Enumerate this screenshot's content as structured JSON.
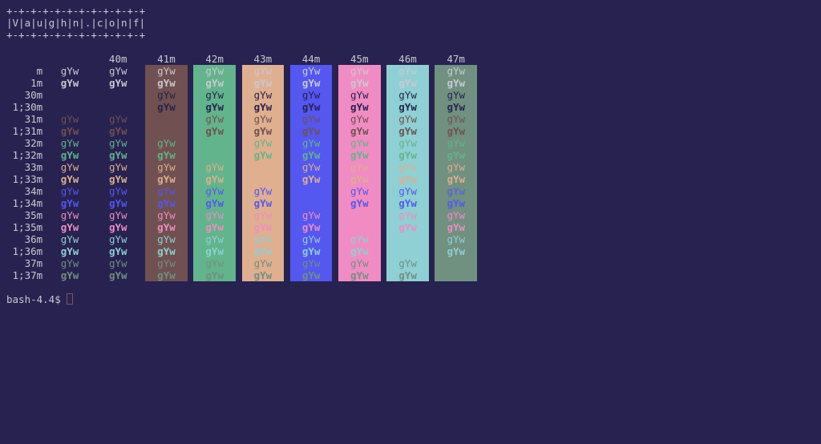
{
  "terminal": {
    "colors": {
      "background": "#272250",
      "foreground": "#c9c9d1",
      "cursor_border": "#8a5260",
      "ansi": {
        "black": "#272250",
        "red": "#705050",
        "green": "#62b48c",
        "yellow": "#dfaf8f",
        "blue": "#5457f0",
        "magenta": "#f08cc3",
        "cyan": "#8ed0d3",
        "white": "#709080"
      }
    },
    "banner": [
      "+-+-+-+-+-+-+-+-+-+-+-+",
      "|V|a|u|g|h|n|.|c|o|n|f|",
      "+-+-+-+-+-+-+-+-+-+-+-+"
    ],
    "color_table": {
      "cell_text": "gYw",
      "bg_headers": [
        "40m",
        "41m",
        "42m",
        "43m",
        "44m",
        "45m",
        "46m",
        "47m"
      ],
      "bg_columns": [
        "black",
        "red",
        "green",
        "yellow",
        "blue",
        "magenta",
        "cyan",
        "white"
      ],
      "rows": [
        {
          "label": "m",
          "fg": "foreground",
          "bold": false
        },
        {
          "label": "1m",
          "fg": "foreground",
          "bold": true
        },
        {
          "label": "30m",
          "fg": "black",
          "bold": false
        },
        {
          "label": "1;30m",
          "fg": "black",
          "bold": true
        },
        {
          "label": "31m",
          "fg": "red",
          "bold": false
        },
        {
          "label": "1;31m",
          "fg": "red",
          "bold": true
        },
        {
          "label": "32m",
          "fg": "green",
          "bold": false
        },
        {
          "label": "1;32m",
          "fg": "green",
          "bold": true
        },
        {
          "label": "33m",
          "fg": "yellow",
          "bold": false
        },
        {
          "label": "1;33m",
          "fg": "yellow",
          "bold": true
        },
        {
          "label": "34m",
          "fg": "blue",
          "bold": false
        },
        {
          "label": "1;34m",
          "fg": "blue",
          "bold": true
        },
        {
          "label": "35m",
          "fg": "magenta",
          "bold": false
        },
        {
          "label": "1;35m",
          "fg": "magenta",
          "bold": true
        },
        {
          "label": "36m",
          "fg": "cyan",
          "bold": false
        },
        {
          "label": "1;36m",
          "fg": "cyan",
          "bold": true
        },
        {
          "label": "37m",
          "fg": "white",
          "bold": false
        },
        {
          "label": "1;37m",
          "fg": "white",
          "bold": true
        }
      ]
    },
    "prompt": "bash-4.4$ "
  }
}
